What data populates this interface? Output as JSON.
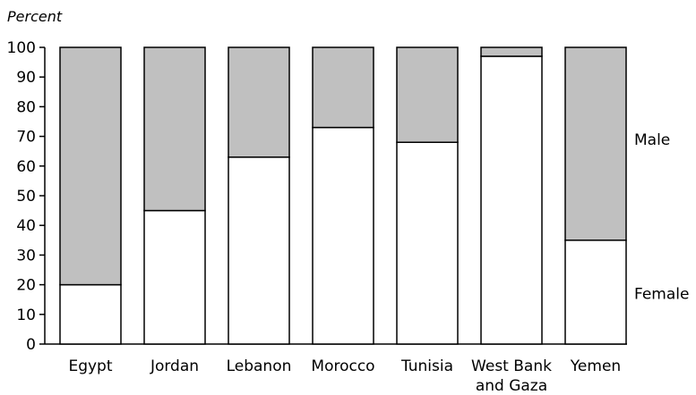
{
  "chart_data": {
    "type": "bar",
    "stacked": true,
    "unit_label": "Percent",
    "categories": [
      [
        "Egypt"
      ],
      [
        "Jordan"
      ],
      [
        "Lebanon"
      ],
      [
        "Morocco"
      ],
      [
        "Tunisia"
      ],
      [
        "West Bank",
        "and Gaza"
      ],
      [
        "Yemen"
      ]
    ],
    "series": [
      {
        "name": "Female",
        "color": "#ffffff",
        "values": [
          20,
          45,
          63,
          73,
          68,
          97,
          35
        ]
      },
      {
        "name": "Male",
        "color": "#c0c0c0",
        "values": [
          80,
          55,
          37,
          27,
          32,
          3,
          65
        ]
      }
    ],
    "ylim": [
      0,
      100
    ],
    "yticks": [
      0,
      10,
      20,
      30,
      40,
      50,
      60,
      70,
      80,
      90,
      100
    ],
    "legend_placement": "right, labels beside bars",
    "grid": false
  }
}
